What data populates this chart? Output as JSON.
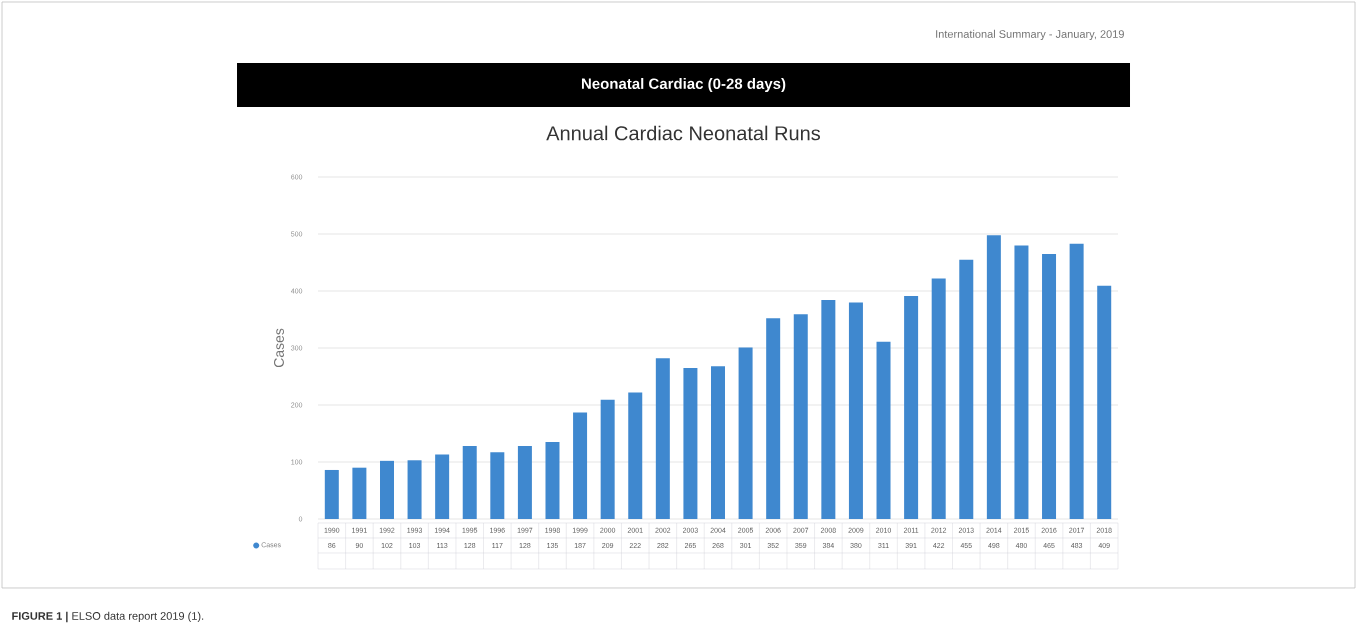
{
  "chart_data": {
    "type": "bar",
    "title": "Neonatal Cardiac (0-28 days)",
    "subtitle": "Annual Cardiac Neonatal Runs",
    "ylabel": "Cases",
    "annotations": [
      "International Summary - January, 2019",
      "**FIGURE 1 |** ELSO data report 2019 (1)."
    ],
    "categories": [
      "1990",
      "1991",
      "1992",
      "1993",
      "1994",
      "1995",
      "1996",
      "1997",
      "1998",
      "1999",
      "2000",
      "2001",
      "2002",
      "2003",
      "2004",
      "2005",
      "2006",
      "2007",
      "2008",
      "2009",
      "2010",
      "2011",
      "2012",
      "2013",
      "2014",
      "2015",
      "2016",
      "2017",
      "2018"
    ],
    "series": [
      {
        "name": "Cases",
        "color": "#3f88cf",
        "values": [
          86,
          90,
          102,
          103,
          113,
          128,
          117,
          128,
          135,
          187,
          209,
          222,
          282,
          265,
          268,
          301,
          352,
          359,
          384,
          380,
          311,
          391,
          422,
          455,
          498,
          480,
          465,
          483,
          409
        ]
      }
    ],
    "ylim": [
      0,
      600
    ],
    "yticks": [
      0,
      100,
      200,
      300,
      400,
      500,
      600
    ],
    "grid": "y",
    "legend": "bottom",
    "data_labels": true
  }
}
